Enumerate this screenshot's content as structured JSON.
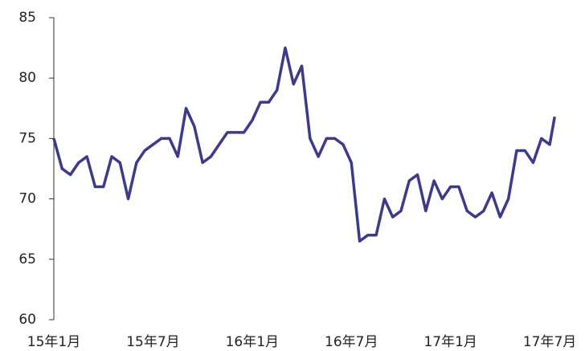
{
  "chart_data": {
    "type": "line",
    "x": [
      0,
      0.5,
      1,
      1.5,
      2,
      2.5,
      3,
      3.5,
      4,
      4.5,
      5,
      5.5,
      6,
      6.5,
      7,
      7.5,
      8,
      8.5,
      9,
      9.5,
      10,
      10.5,
      11,
      11.5,
      12,
      12.5,
      13,
      13.5,
      14,
      14.5,
      15,
      15.5,
      16,
      16.5,
      17,
      17.5,
      18,
      18.5,
      19,
      19.5,
      20,
      20.5,
      21,
      21.5,
      22,
      22.5,
      23,
      23.5,
      24,
      24.5,
      25,
      25.5,
      26,
      26.5,
      27,
      27.5,
      28,
      28.5,
      29,
      29.5,
      30,
      30.3
    ],
    "series": [
      {
        "name": null,
        "color": "#3d3a8c",
        "values": [
          75,
          72.5,
          72,
          73,
          73.5,
          71,
          71,
          73.5,
          73,
          70,
          73,
          74,
          74.5,
          75,
          75,
          73.5,
          77.5,
          76,
          73,
          73.5,
          74.5,
          75.5,
          75.5,
          75.5,
          76.5,
          78,
          78,
          79,
          82.5,
          79.5,
          81,
          75,
          73.5,
          75,
          75,
          74.5,
          73,
          66.5,
          67,
          67,
          70,
          68.5,
          69,
          71.5,
          72,
          69,
          71.5,
          70,
          71,
          71,
          69,
          68.5,
          69,
          70.5,
          68.5,
          70,
          74,
          74,
          73,
          75,
          74.5,
          76.8
        ]
      }
    ],
    "xlim": [
      0,
      31.6
    ],
    "xticks": [
      {
        "value": 0,
        "label": "15年1月"
      },
      {
        "value": 6,
        "label": "15年7月"
      },
      {
        "value": 12,
        "label": "16年1月"
      },
      {
        "value": 18,
        "label": "16年7月"
      },
      {
        "value": 24,
        "label": "17年1月"
      },
      {
        "value": 30,
        "label": "17年7月"
      }
    ],
    "ylim": [
      60,
      85
    ],
    "yticks": [
      60,
      65,
      70,
      75,
      80,
      85
    ]
  }
}
